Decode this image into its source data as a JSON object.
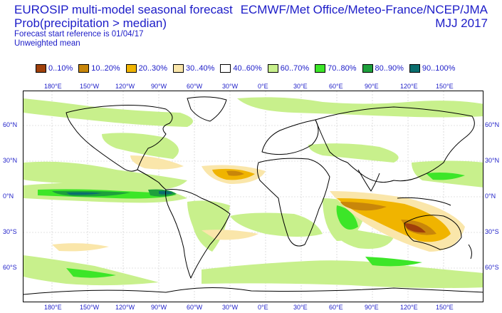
{
  "header": {
    "title": "EUROSIP multi-model seasonal forecast",
    "subtitle": "Prob(precipitation > median)",
    "start_ref": "Forecast start reference is 01/04/17",
    "weighting": "Unweighted mean",
    "providers": "ECMWF/Met Office/Meteo-France/NCEP/JMA",
    "period": "MJJ 2017"
  },
  "legend": [
    {
      "label": "0..10%",
      "color": "#a0400a"
    },
    {
      "label": "10..20%",
      "color": "#c8860a"
    },
    {
      "label": "20..30%",
      "color": "#f0b400"
    },
    {
      "label": "30..40%",
      "color": "#fae6aa"
    },
    {
      "label": "40..60%",
      "color": "#ffffff"
    },
    {
      "label": "60..70%",
      "color": "#c8f08c"
    },
    {
      "label": "70..80%",
      "color": "#3ce628"
    },
    {
      "label": "80..90%",
      "color": "#1ea03c"
    },
    {
      "label": "90..100%",
      "color": "#0a6e6e"
    }
  ],
  "map": {
    "lon_labels": [
      "180°E",
      "150°W",
      "120°W",
      "90°W",
      "60°W",
      "30°W",
      "0°E",
      "30°E",
      "60°E",
      "90°E",
      "120°E",
      "150°E"
    ],
    "lat_labels": [
      "60°N",
      "30°N",
      "0°N",
      "30°S",
      "60°S"
    ]
  }
}
